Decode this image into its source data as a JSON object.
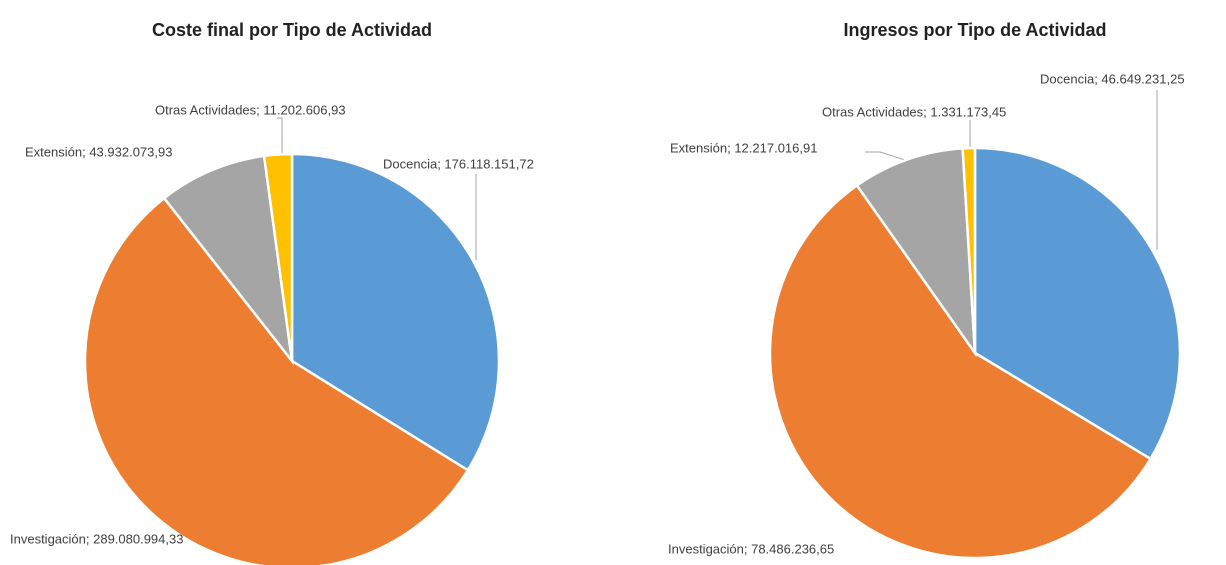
{
  "chart_data": [
    {
      "type": "pie",
      "title": "Coste final por Tipo de Actividad",
      "values": [
        176118151.72,
        289080994.33,
        43932073.93,
        11202606.93
      ],
      "value_labels": [
        "Docencia; 176.118.151,72",
        "Investigación; 289.080.994,33",
        "Extensión; 43.932.073,93",
        "Otras Actividades; 11.202.606,93"
      ],
      "colors": [
        "#5b9bd5",
        "#ed7d31",
        "#a5a5a5",
        "#ffc000"
      ]
    },
    {
      "type": "pie",
      "title": "Ingresos por Tipo de Actividad",
      "values": [
        46649231.25,
        78486236.65,
        12217016.91,
        1331173.45
      ],
      "value_labels": [
        "Docencia; 46.649.231,25",
        "Investigación; 78.486.236,65",
        "Extensión; 12.217.016,91",
        "Otras Actividades; 1.331.173,45"
      ],
      "colors": [
        "#5b9bd5",
        "#ed7d31",
        "#a5a5a5",
        "#ffc000"
      ]
    }
  ]
}
